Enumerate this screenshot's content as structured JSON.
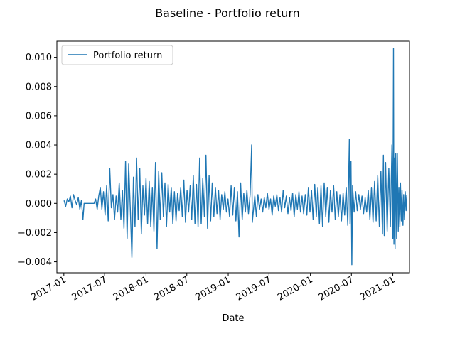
{
  "chart_data": {
    "type": "line",
    "title": "Baseline - Portfolio return",
    "xlabel": "Date",
    "ylabel": "",
    "x_range": [
      "2016-12-01",
      "2021-03-16"
    ],
    "ylim": [
      -0.00475,
      0.0111
    ],
    "grid": false,
    "legend_position": "upper-left",
    "x_ticks": [
      "2017-01",
      "2017-07",
      "2018-01",
      "2018-07",
      "2019-01",
      "2019-07",
      "2020-01",
      "2020-07",
      "2021-01"
    ],
    "y_ticks": [
      {
        "value": -0.004,
        "label": "−0.004"
      },
      {
        "value": -0.002,
        "label": "−0.002"
      },
      {
        "value": 0.0,
        "label": "0.000"
      },
      {
        "value": 0.002,
        "label": "0.002"
      },
      {
        "value": 0.004,
        "label": "0.004"
      },
      {
        "value": 0.006,
        "label": "0.006"
      },
      {
        "value": 0.008,
        "label": "0.008"
      },
      {
        "value": 0.01,
        "label": "0.010"
      }
    ],
    "series": [
      {
        "name": "Portfolio return",
        "color": "#1f77b4",
        "points": [
          [
            "2017-01-02",
            0.0002
          ],
          [
            "2017-01-09",
            -0.0002
          ],
          [
            "2017-01-16",
            0.0003
          ],
          [
            "2017-01-23",
            0.0001
          ],
          [
            "2017-01-30",
            0.0005
          ],
          [
            "2017-02-06",
            -0.0003
          ],
          [
            "2017-02-13",
            0.0006
          ],
          [
            "2017-02-20",
            0.0002
          ],
          [
            "2017-02-27",
            -0.0001
          ],
          [
            "2017-03-06",
            0.0004
          ],
          [
            "2017-03-13",
            -0.0004
          ],
          [
            "2017-03-20",
            0.0002
          ],
          [
            "2017-03-27",
            -0.0011
          ],
          [
            "2017-04-01",
            0.0
          ],
          [
            "2017-05-15",
            0.0
          ],
          [
            "2017-05-22",
            0.0003
          ],
          [
            "2017-05-29",
            -0.0004
          ],
          [
            "2017-06-05",
            0.0005
          ],
          [
            "2017-06-12",
            0.0011
          ],
          [
            "2017-06-19",
            -0.0004
          ],
          [
            "2017-06-26",
            0.0008
          ],
          [
            "2017-07-03",
            -0.0008
          ],
          [
            "2017-07-10",
            0.0012
          ],
          [
            "2017-07-17",
            -0.0012
          ],
          [
            "2017-07-24",
            0.0024
          ],
          [
            "2017-07-31",
            -0.0003
          ],
          [
            "2017-08-07",
            0.0006
          ],
          [
            "2017-08-14",
            -0.0011
          ],
          [
            "2017-08-21",
            0.0005
          ],
          [
            "2017-08-28",
            -0.0006
          ],
          [
            "2017-09-04",
            0.0014
          ],
          [
            "2017-09-11",
            -0.0011
          ],
          [
            "2017-09-18",
            0.0009
          ],
          [
            "2017-09-25",
            -0.0017
          ],
          [
            "2017-10-02",
            0.0029
          ],
          [
            "2017-10-09",
            -0.0024
          ],
          [
            "2017-10-16",
            0.0027
          ],
          [
            "2017-10-23",
            -0.0004
          ],
          [
            "2017-10-30",
            -0.0037
          ],
          [
            "2017-11-06",
            0.0018
          ],
          [
            "2017-11-13",
            -0.0016
          ],
          [
            "2017-11-20",
            0.0031
          ],
          [
            "2017-11-27",
            -0.0011
          ],
          [
            "2017-12-04",
            0.0024
          ],
          [
            "2017-12-11",
            -0.0021
          ],
          [
            "2017-12-18",
            0.0012
          ],
          [
            "2017-12-25",
            -0.0008
          ],
          [
            "2018-01-01",
            0.0017
          ],
          [
            "2018-01-08",
            -0.0014
          ],
          [
            "2018-01-15",
            0.0015
          ],
          [
            "2018-01-22",
            -0.0016
          ],
          [
            "2018-01-29",
            0.0011
          ],
          [
            "2018-02-05",
            -0.0019
          ],
          [
            "2018-02-12",
            0.0028
          ],
          [
            "2018-02-19",
            -0.0031
          ],
          [
            "2018-02-26",
            0.0022
          ],
          [
            "2018-03-05",
            -0.0011
          ],
          [
            "2018-03-12",
            0.0021
          ],
          [
            "2018-03-19",
            -0.0009
          ],
          [
            "2018-03-26",
            0.0014
          ],
          [
            "2018-04-02",
            -0.0016
          ],
          [
            "2018-04-09",
            0.0013
          ],
          [
            "2018-04-16",
            -0.0006
          ],
          [
            "2018-04-23",
            0.0011
          ],
          [
            "2018-04-30",
            -0.0014
          ],
          [
            "2018-05-07",
            0.0008
          ],
          [
            "2018-05-14",
            -0.0012
          ],
          [
            "2018-05-21",
            0.0007
          ],
          [
            "2018-05-28",
            -0.0005
          ],
          [
            "2018-06-04",
            0.0011
          ],
          [
            "2018-06-11",
            -0.0009
          ],
          [
            "2018-06-18",
            0.0016
          ],
          [
            "2018-06-25",
            -0.0013
          ],
          [
            "2018-07-02",
            0.0009
          ],
          [
            "2018-07-09",
            -0.0006
          ],
          [
            "2018-07-16",
            0.0012
          ],
          [
            "2018-07-23",
            -0.0011
          ],
          [
            "2018-07-30",
            0.0019
          ],
          [
            "2018-08-06",
            -0.0014
          ],
          [
            "2018-08-13",
            0.0013
          ],
          [
            "2018-08-20",
            -0.0016
          ],
          [
            "2018-08-27",
            0.0031
          ],
          [
            "2018-09-03",
            -0.0014
          ],
          [
            "2018-09-10",
            0.0017
          ],
          [
            "2018-09-17",
            -0.0009
          ],
          [
            "2018-09-24",
            0.0033
          ],
          [
            "2018-10-01",
            -0.0017
          ],
          [
            "2018-10-08",
            0.0019
          ],
          [
            "2018-10-15",
            -0.0012
          ],
          [
            "2018-10-22",
            0.0014
          ],
          [
            "2018-10-29",
            -0.0009
          ],
          [
            "2018-11-05",
            0.0011
          ],
          [
            "2018-11-12",
            -0.0007
          ],
          [
            "2018-11-19",
            0.0009
          ],
          [
            "2018-11-26",
            -0.0011
          ],
          [
            "2018-12-03",
            0.0006
          ],
          [
            "2018-12-10",
            -0.0004
          ],
          [
            "2018-12-17",
            0.0008
          ],
          [
            "2018-12-24",
            -0.0006
          ],
          [
            "2018-12-31",
            0.0003
          ],
          [
            "2019-01-07",
            -0.0009
          ],
          [
            "2019-01-14",
            0.0012
          ],
          [
            "2019-01-21",
            -0.0008
          ],
          [
            "2019-01-28",
            0.0011
          ],
          [
            "2019-02-04",
            -0.0012
          ],
          [
            "2019-02-11",
            0.0008
          ],
          [
            "2019-02-18",
            -0.0023
          ],
          [
            "2019-02-25",
            0.0014
          ],
          [
            "2019-03-04",
            -0.0011
          ],
          [
            "2019-03-11",
            0.0007
          ],
          [
            "2019-03-18",
            -0.0006
          ],
          [
            "2019-03-25",
            0.0009
          ],
          [
            "2019-04-01",
            -0.0007
          ],
          [
            "2019-04-08",
            0.0006
          ],
          [
            "2019-04-15",
            0.004
          ],
          [
            "2019-04-18",
            -0.0013
          ],
          [
            "2019-04-29",
            0.0005
          ],
          [
            "2019-05-06",
            -0.0009
          ],
          [
            "2019-05-13",
            0.0006
          ],
          [
            "2019-05-20",
            -0.0004
          ],
          [
            "2019-05-27",
            0.0003
          ],
          [
            "2019-06-03",
            -0.0006
          ],
          [
            "2019-06-10",
            0.0004
          ],
          [
            "2019-06-17",
            -0.0003
          ],
          [
            "2019-06-24",
            0.0007
          ],
          [
            "2019-07-01",
            -0.0004
          ],
          [
            "2019-07-08",
            0.0003
          ],
          [
            "2019-07-15",
            -0.0008
          ],
          [
            "2019-07-22",
            0.0005
          ],
          [
            "2019-07-29",
            -0.0002
          ],
          [
            "2019-08-05",
            0.0006
          ],
          [
            "2019-08-12",
            -0.0005
          ],
          [
            "2019-08-19",
            0.0004
          ],
          [
            "2019-08-26",
            -0.0006
          ],
          [
            "2019-09-02",
            0.0009
          ],
          [
            "2019-09-09",
            -0.0003
          ],
          [
            "2019-09-16",
            0.0005
          ],
          [
            "2019-09-23",
            -0.0007
          ],
          [
            "2019-09-30",
            0.0004
          ],
          [
            "2019-10-07",
            -0.0005
          ],
          [
            "2019-10-14",
            0.0007
          ],
          [
            "2019-10-21",
            -0.0009
          ],
          [
            "2019-10-28",
            0.0006
          ],
          [
            "2019-11-04",
            -0.0004
          ],
          [
            "2019-11-11",
            0.0008
          ],
          [
            "2019-11-18",
            -0.0006
          ],
          [
            "2019-11-25",
            0.0005
          ],
          [
            "2019-12-02",
            -0.0007
          ],
          [
            "2019-12-09",
            0.0006
          ],
          [
            "2019-12-16",
            -0.0008
          ],
          [
            "2019-12-23",
            0.0011
          ],
          [
            "2019-12-30",
            -0.0006
          ],
          [
            "2020-01-06",
            0.0009
          ],
          [
            "2020-01-13",
            -0.0011
          ],
          [
            "2020-01-20",
            0.0013
          ],
          [
            "2020-01-27",
            -0.0009
          ],
          [
            "2020-02-03",
            0.0011
          ],
          [
            "2020-02-10",
            -0.0014
          ],
          [
            "2020-02-17",
            0.0012
          ],
          [
            "2020-02-24",
            -0.0016
          ],
          [
            "2020-03-02",
            0.0014
          ],
          [
            "2020-03-09",
            -0.0009
          ],
          [
            "2020-03-16",
            0.0011
          ],
          [
            "2020-03-23",
            -0.0013
          ],
          [
            "2020-03-30",
            0.0009
          ],
          [
            "2020-04-06",
            -0.0006
          ],
          [
            "2020-04-13",
            0.0012
          ],
          [
            "2020-04-20",
            -0.0011
          ],
          [
            "2020-04-27",
            0.0008
          ],
          [
            "2020-05-04",
            -0.0009
          ],
          [
            "2020-05-11",
            0.0006
          ],
          [
            "2020-05-18",
            -0.0012
          ],
          [
            "2020-05-25",
            0.0007
          ],
          [
            "2020-06-01",
            -0.0008
          ],
          [
            "2020-06-08",
            0.0011
          ],
          [
            "2020-06-15",
            -0.0015
          ],
          [
            "2020-06-22",
            0.0044
          ],
          [
            "2020-06-25",
            -0.0014
          ],
          [
            "2020-06-29",
            0.0029
          ],
          [
            "2020-07-03",
            -0.0042
          ],
          [
            "2020-07-06",
            0.0012
          ],
          [
            "2020-07-13",
            -0.0006
          ],
          [
            "2020-07-20",
            0.0008
          ],
          [
            "2020-07-27",
            -0.0005
          ],
          [
            "2020-08-03",
            0.0006
          ],
          [
            "2020-08-10",
            -0.0004
          ],
          [
            "2020-08-17",
            0.0005
          ],
          [
            "2020-08-24",
            -0.0007
          ],
          [
            "2020-08-31",
            0.0004
          ],
          [
            "2020-09-07",
            -0.0006
          ],
          [
            "2020-09-14",
            0.0009
          ],
          [
            "2020-09-21",
            -0.0011
          ],
          [
            "2020-09-28",
            0.0011
          ],
          [
            "2020-10-05",
            -0.0013
          ],
          [
            "2020-10-12",
            0.0015
          ],
          [
            "2020-10-19",
            -0.0012
          ],
          [
            "2020-10-26",
            0.0019
          ],
          [
            "2020-11-02",
            -0.0016
          ],
          [
            "2020-11-09",
            0.0022
          ],
          [
            "2020-11-16",
            -0.0021
          ],
          [
            "2020-11-20",
            0.0033
          ],
          [
            "2020-11-24",
            -0.0022
          ],
          [
            "2020-11-30",
            0.0028
          ],
          [
            "2020-12-07",
            -0.0019
          ],
          [
            "2020-12-14",
            0.0024
          ],
          [
            "2020-12-21",
            -0.0016
          ],
          [
            "2020-12-28",
            0.004
          ],
          [
            "2021-01-01",
            -0.0024
          ],
          [
            "2021-01-04",
            0.0106
          ],
          [
            "2021-01-06",
            -0.0028
          ],
          [
            "2021-01-08",
            0.0031
          ],
          [
            "2021-01-11",
            -0.0031
          ],
          [
            "2021-01-14",
            0.0034
          ],
          [
            "2021-01-18",
            -0.0024
          ],
          [
            "2021-01-21",
            0.0034
          ],
          [
            "2021-01-25",
            -0.0019
          ],
          [
            "2021-01-28",
            0.0011
          ],
          [
            "2021-02-01",
            -0.0016
          ],
          [
            "2021-02-04",
            0.0014
          ],
          [
            "2021-02-08",
            -0.0012
          ],
          [
            "2021-02-11",
            0.0009
          ],
          [
            "2021-02-15",
            -0.0015
          ],
          [
            "2021-02-18",
            0.0006
          ],
          [
            "2021-02-22",
            -0.0011
          ],
          [
            "2021-02-25",
            0.0008
          ],
          [
            "2021-03-01",
            -0.0005
          ],
          [
            "2021-03-04",
            0.0006
          ]
        ]
      }
    ]
  }
}
